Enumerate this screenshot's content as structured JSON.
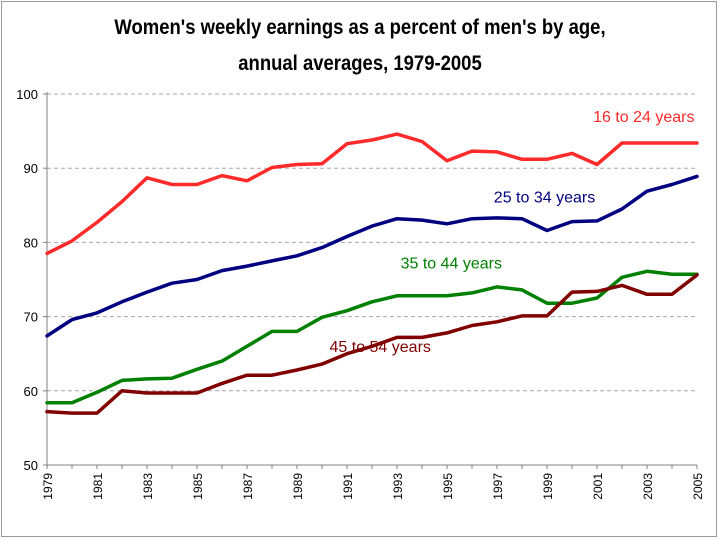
{
  "chart_data": {
    "type": "line",
    "title": "Women's weekly earnings as a percent of men's by age,",
    "subtitle": "annual averages, 1979-2005",
    "xlabel": "",
    "ylabel": "",
    "xlim": [
      1979,
      2005
    ],
    "ylim": [
      50,
      100
    ],
    "y_ticks": [
      50,
      60,
      70,
      80,
      90,
      100
    ],
    "x_ticks": [
      "1979",
      "1981",
      "1983",
      "1985",
      "1987",
      "1989",
      "1991",
      "1993",
      "1995",
      "1997",
      "1999",
      "2001",
      "2003",
      "2005"
    ],
    "gridlines": "horizontal dashed",
    "legend": "inline labels",
    "x": [
      1979,
      1980,
      1981,
      1982,
      1983,
      1984,
      1985,
      1986,
      1987,
      1988,
      1989,
      1990,
      1991,
      1992,
      1993,
      1994,
      1995,
      1996,
      1997,
      1998,
      1999,
      2000,
      2001,
      2002,
      2003,
      2004,
      2005
    ],
    "series": [
      {
        "name": "16 to 24 years",
        "color": "#ff2a2a",
        "values": [
          78.5,
          80.2,
          82.7,
          85.5,
          88.7,
          87.8,
          87.8,
          89.0,
          88.3,
          90.1,
          90.5,
          90.6,
          93.3,
          93.8,
          94.6,
          93.6,
          91.0,
          92.3,
          92.2,
          91.2,
          91.2,
          92.0,
          90.5,
          93.4,
          93.4,
          93.4,
          93.4
        ]
      },
      {
        "name": "25 to 34 years",
        "color": "#000080",
        "values": [
          67.4,
          69.6,
          70.5,
          72.0,
          73.3,
          74.5,
          75.0,
          76.2,
          76.8,
          77.5,
          78.2,
          79.3,
          80.8,
          82.2,
          83.2,
          83.0,
          82.5,
          83.2,
          83.3,
          83.2,
          81.6,
          82.8,
          82.9,
          84.5,
          86.9,
          87.8,
          88.9
        ]
      },
      {
        "name": "35 to 44 years",
        "color": "#008000",
        "values": [
          58.4,
          58.4,
          59.8,
          61.4,
          61.6,
          61.7,
          62.9,
          64.0,
          66.0,
          68.0,
          68.0,
          69.9,
          70.8,
          72.0,
          72.8,
          72.8,
          72.8,
          73.2,
          74.0,
          73.6,
          71.8,
          71.8,
          72.5,
          75.3,
          76.1,
          75.7,
          75.7
        ]
      },
      {
        "name": "45 to 54 years",
        "color": "#800000",
        "values": [
          57.2,
          57.0,
          57.0,
          60.0,
          59.7,
          59.7,
          59.7,
          61.0,
          62.1,
          62.1,
          62.8,
          63.6,
          65.0,
          66.0,
          67.2,
          67.2,
          67.8,
          68.8,
          69.3,
          70.1,
          70.1,
          73.3,
          73.4,
          74.2,
          73.0,
          73.0,
          75.6
        ]
      }
    ]
  }
}
